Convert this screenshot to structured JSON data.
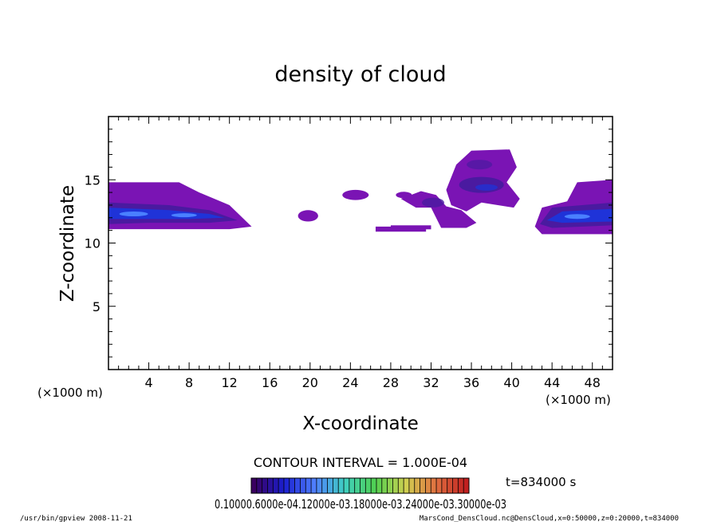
{
  "chart_data": {
    "type": "heatmap",
    "title": "density of cloud",
    "xlabel": "X-coordinate",
    "ylabel": "Z-coordinate",
    "x_unit_left": "(×1000 m)",
    "x_unit_right": "(×1000 m)",
    "xlim": [
      0,
      50
    ],
    "ylim": [
      0,
      20
    ],
    "x_ticks": [
      "4",
      "8",
      "12",
      "16",
      "20",
      "24",
      "28",
      "32",
      "36",
      "40",
      "44",
      "48"
    ],
    "x_tick_values": [
      4,
      8,
      12,
      16,
      20,
      24,
      28,
      32,
      36,
      40,
      44,
      48
    ],
    "y_ticks": [
      "5",
      "10",
      "15"
    ],
    "y_tick_values": [
      5,
      10,
      15
    ],
    "contour_interval_text": "CONTOUR INTERVAL = 1.000E-04",
    "time_text": "t=834000 s",
    "colorbar_labels_text": "0.10000.6000e-04.12000e-03.18000e-03.24000e-03.30000e-03",
    "colorbar_range": [
      0.0001,
      0.0003
    ],
    "colormap": [
      "#3a0060",
      "#1a1fd0",
      "#4f7fff",
      "#3fd0c0",
      "#50d050",
      "#d0d050",
      "#e07040",
      "#c02020"
    ],
    "cloud_regions": [
      {
        "x": [
          0,
          14.2
        ],
        "z": [
          11.1,
          14.8
        ],
        "core_z": 12.2,
        "core_x": [
          0,
          12
        ],
        "density": "high"
      },
      {
        "x": [
          18.8,
          20.8
        ],
        "z": [
          11.7,
          12.6
        ],
        "density": "low"
      },
      {
        "x": [
          23.2,
          25.8
        ],
        "z": [
          13.4,
          14.2
        ],
        "density": "low"
      },
      {
        "x": [
          26.5,
          36.8
        ],
        "z": [
          10.9,
          14.2
        ],
        "density": "low-medium"
      },
      {
        "x": [
          33.5,
          40.8
        ],
        "z": [
          12.5,
          17.4
        ],
        "core_z": 14.5,
        "density": "medium"
      },
      {
        "x": [
          42.3,
          50
        ],
        "z": [
          10.7,
          15.0
        ],
        "core_z": 12.1,
        "core_x": [
          43,
          50
        ],
        "density": "high"
      }
    ]
  },
  "footer": {
    "left": "/usr/bin/gpview   2008-11-21",
    "right": "MarsCond_DensCloud.nc@DensCloud,x=0:50000,z=0:20000,t=834000"
  }
}
